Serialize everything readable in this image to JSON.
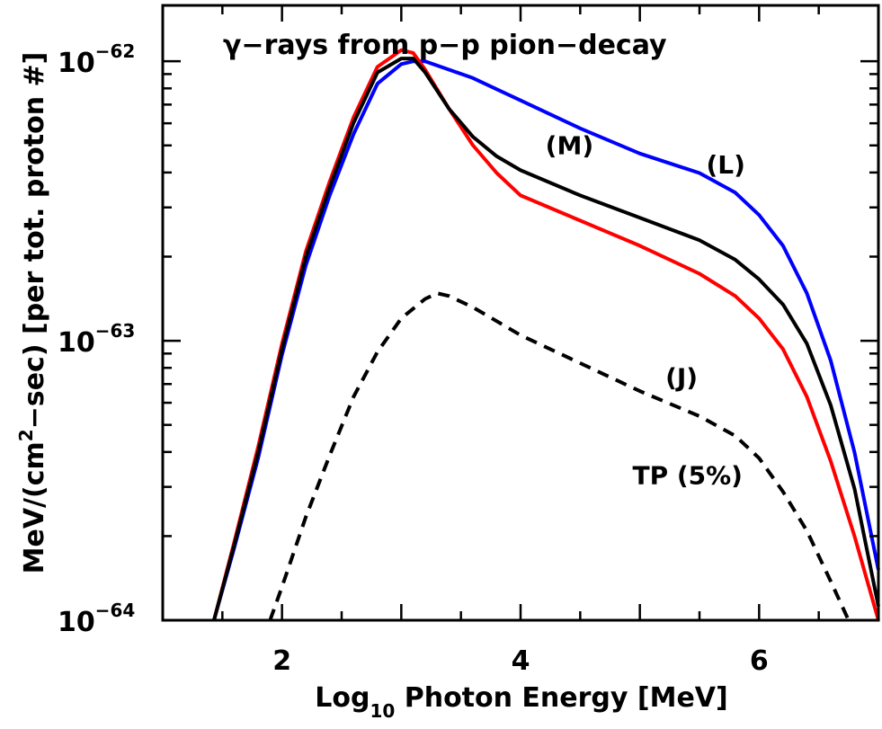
{
  "chart_data": {
    "type": "line",
    "title": "γ−rays from p−p pion−decay",
    "xlabel": "Log10 Photon Energy [MeV]",
    "xlabel_parts": {
      "pre": "Log",
      "sub": "10",
      "post": " Photon Energy [MeV]"
    },
    "ylabel": "MeV/(cm2−sec) [per tot. proton #]",
    "ylabel_parts": {
      "pre": "MeV/(cm",
      "sup": "2",
      "post": "−sec) [per tot. proton #]"
    },
    "xlim": [
      1.0,
      7.0
    ],
    "ylim_log10": [
      -64,
      -61.8
    ],
    "y_scale": "log",
    "x_ticks": [
      "2",
      "4",
      "6"
    ],
    "y_ticks": [
      {
        "value": -64,
        "base": "10",
        "exp": "−64"
      },
      {
        "value": -63,
        "base": "10",
        "exp": "−63"
      },
      {
        "value": -62,
        "base": "10",
        "exp": "−62"
      }
    ],
    "grid": false,
    "colors": {
      "J": "#ff0000",
      "M": "#000000",
      "L": "#0000ff",
      "TP": "#000000"
    },
    "series": [
      {
        "key": "J",
        "label": "(J)",
        "label_at": [
          5.35,
          -63.13
        ],
        "x": [
          1.43,
          1.6,
          1.8,
          2.0,
          2.2,
          2.4,
          2.6,
          2.8,
          3.0,
          3.1,
          3.2,
          3.4,
          3.6,
          3.8,
          4.0,
          4.5,
          5.0,
          5.5,
          5.8,
          6.0,
          6.2,
          6.4,
          6.6,
          6.8,
          7.0
        ],
        "log10y": [
          -64.0,
          -63.72,
          -63.38,
          -63.01,
          -62.68,
          -62.43,
          -62.2,
          -62.02,
          -61.96,
          -61.97,
          -62.03,
          -62.17,
          -62.3,
          -62.4,
          -62.48,
          -62.57,
          -62.66,
          -62.76,
          -62.84,
          -62.92,
          -63.03,
          -63.2,
          -63.43,
          -63.7,
          -64.0
        ]
      },
      {
        "key": "M",
        "label": "(M)",
        "label_at": [
          4.41,
          -62.3
        ],
        "x": [
          1.43,
          1.6,
          1.8,
          2.0,
          2.2,
          2.4,
          2.6,
          2.8,
          3.0,
          3.1,
          3.2,
          3.4,
          3.6,
          3.8,
          4.0,
          4.5,
          5.0,
          5.5,
          5.8,
          6.0,
          6.2,
          6.4,
          6.6,
          6.8,
          7.0
        ],
        "log10y": [
          -64.0,
          -63.73,
          -63.4,
          -63.03,
          -62.7,
          -62.45,
          -62.22,
          -62.04,
          -61.99,
          -61.99,
          -62.04,
          -62.17,
          -62.27,
          -62.34,
          -62.39,
          -62.48,
          -62.56,
          -62.64,
          -62.71,
          -62.78,
          -62.87,
          -63.01,
          -63.23,
          -63.53,
          -63.95
        ]
      },
      {
        "key": "L",
        "label": "(L)",
        "label_at": [
          5.72,
          -62.37
        ],
        "x": [
          1.43,
          1.6,
          1.8,
          2.0,
          2.2,
          2.4,
          2.6,
          2.8,
          3.0,
          3.1,
          3.2,
          3.4,
          3.6,
          3.8,
          4.0,
          4.5,
          5.0,
          5.5,
          5.8,
          6.0,
          6.2,
          6.4,
          6.6,
          6.8,
          7.0
        ],
        "log10y": [
          -64.0,
          -63.74,
          -63.42,
          -63.05,
          -62.73,
          -62.48,
          -62.26,
          -62.08,
          -62.01,
          -62.0,
          -62.0,
          -62.03,
          -62.06,
          -62.1,
          -62.14,
          -62.24,
          -62.33,
          -62.4,
          -62.47,
          -62.55,
          -62.66,
          -62.83,
          -63.07,
          -63.4,
          -63.82
        ]
      },
      {
        "key": "TP",
        "label": "TP (5%)",
        "label_at": [
          5.4,
          -63.48
        ],
        "dashed": true,
        "x": [
          1.9,
          2.0,
          2.2,
          2.4,
          2.6,
          2.8,
          3.0,
          3.2,
          3.3,
          3.4,
          3.6,
          3.8,
          4.0,
          4.5,
          5.0,
          5.5,
          5.8,
          6.0,
          6.2,
          6.4,
          6.6,
          6.75
        ],
        "log10y": [
          -64.0,
          -63.88,
          -63.63,
          -63.41,
          -63.2,
          -63.04,
          -62.92,
          -62.85,
          -62.83,
          -62.84,
          -62.88,
          -62.93,
          -62.98,
          -63.08,
          -63.18,
          -63.27,
          -63.34,
          -63.42,
          -63.54,
          -63.68,
          -63.86,
          -64.0
        ]
      }
    ]
  }
}
